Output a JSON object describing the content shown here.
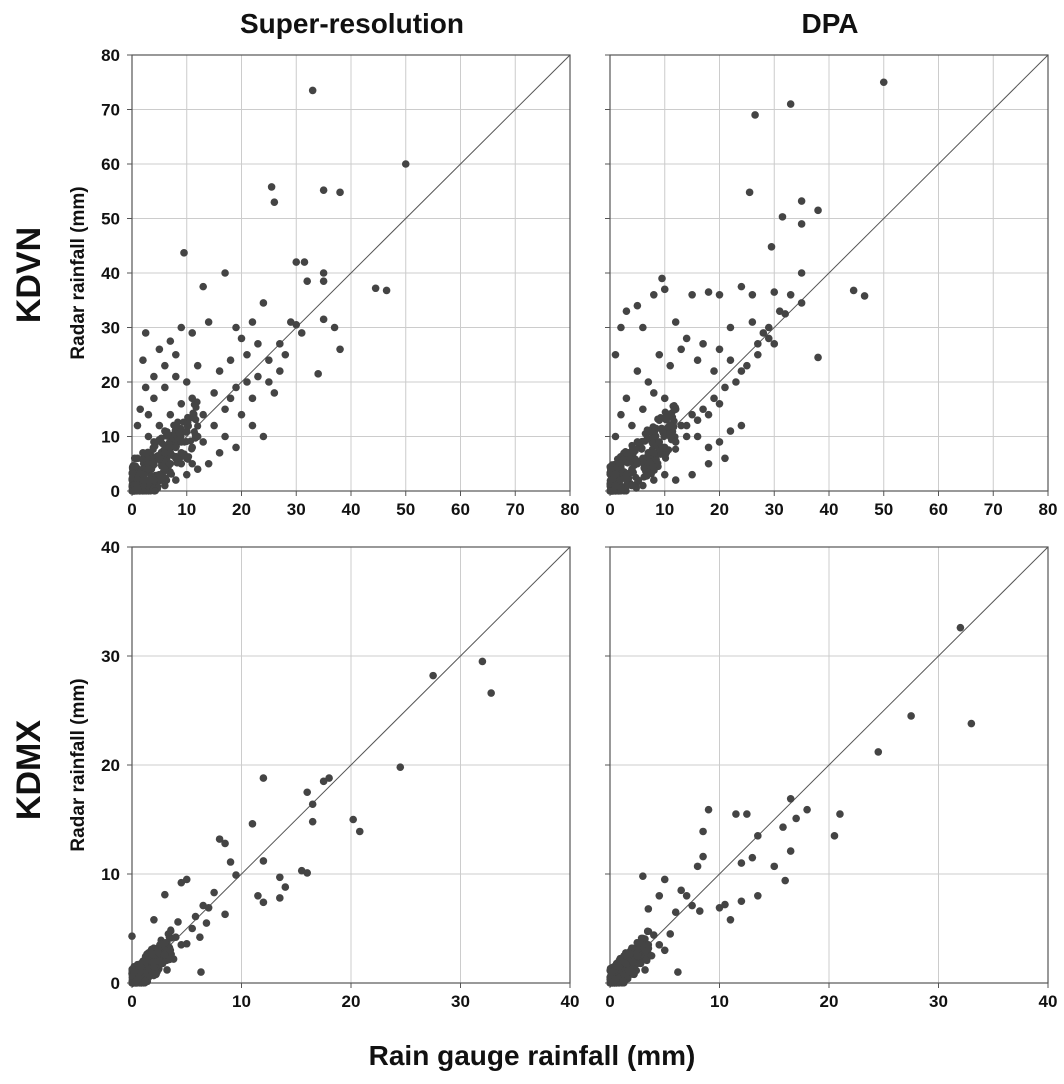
{
  "titles": {
    "columns": [
      "Super-resolution",
      "DPA"
    ],
    "rows": [
      "KDVN",
      "KDMX"
    ],
    "x_axis": "Rain gauge rainfall (mm)",
    "y_axis": "Radar rainfall (mm)"
  },
  "colors": {
    "marker": "#444444",
    "grid": "#cccccc",
    "line": "#555555",
    "axis": "#555555"
  },
  "chart_data": [
    {
      "id": "kdvn-superres",
      "type": "scatter",
      "xlabel": "",
      "ylabel": "Radar rainfall (mm)",
      "xlim": [
        0,
        80
      ],
      "ylim": [
        0,
        80
      ],
      "xticks": [
        0,
        10,
        20,
        30,
        40,
        50,
        60,
        70,
        80
      ],
      "yticks": [
        0,
        10,
        20,
        30,
        40,
        50,
        60,
        70,
        80
      ],
      "grid": true,
      "reference_line": "1:1",
      "points": [
        [
          33,
          73.5
        ],
        [
          50,
          60
        ],
        [
          25.5,
          55.8
        ],
        [
          26,
          53
        ],
        [
          35,
          55.2
        ],
        [
          38,
          54.8
        ],
        [
          9.5,
          43.7
        ],
        [
          30,
          42
        ],
        [
          31.5,
          42
        ],
        [
          35,
          40
        ],
        [
          35,
          38.5
        ],
        [
          32,
          38.5
        ],
        [
          44.5,
          37.2
        ],
        [
          46.5,
          36.8
        ],
        [
          17,
          40
        ],
        [
          13,
          37.5
        ],
        [
          24,
          34.5
        ],
        [
          29,
          31
        ],
        [
          30,
          30.5
        ],
        [
          35,
          31.5
        ],
        [
          37,
          30
        ],
        [
          38,
          26
        ],
        [
          34,
          21.5
        ],
        [
          2,
          24
        ],
        [
          2.5,
          29
        ],
        [
          5,
          26
        ],
        [
          7,
          27.5
        ],
        [
          9,
          30
        ],
        [
          11,
          29
        ],
        [
          14,
          31
        ],
        [
          19,
          30
        ],
        [
          20,
          28
        ],
        [
          22,
          31
        ],
        [
          21,
          25
        ],
        [
          23,
          27
        ],
        [
          18,
          24
        ],
        [
          16,
          22
        ],
        [
          12,
          23
        ],
        [
          10,
          20
        ],
        [
          8,
          21
        ],
        [
          6,
          19
        ],
        [
          4,
          17
        ],
        [
          3,
          14
        ],
        [
          15,
          18
        ],
        [
          18,
          17
        ],
        [
          20,
          14
        ],
        [
          22,
          12
        ],
        [
          24,
          10
        ],
        [
          19,
          8
        ],
        [
          16,
          7
        ],
        [
          14,
          5
        ],
        [
          12,
          4
        ],
        [
          10,
          3
        ],
        [
          8,
          2
        ],
        [
          6,
          1
        ],
        [
          5,
          12
        ],
        [
          7,
          14
        ],
        [
          9,
          16
        ],
        [
          11,
          17
        ],
        [
          13,
          14
        ],
        [
          15,
          12
        ],
        [
          17,
          10
        ],
        [
          13,
          9
        ],
        [
          11,
          8
        ],
        [
          9,
          9
        ],
        [
          7,
          8
        ],
        [
          5,
          6
        ],
        [
          3,
          5
        ],
        [
          2,
          3
        ],
        [
          1,
          2
        ],
        [
          4,
          9
        ],
        [
          6,
          11
        ],
        [
          8,
          12
        ],
        [
          10,
          11
        ],
        [
          12,
          10
        ],
        [
          2,
          7
        ],
        [
          3,
          10
        ],
        [
          1,
          6
        ],
        [
          1,
          12
        ],
        [
          0.5,
          1
        ],
        [
          1,
          1
        ],
        [
          2,
          1
        ],
        [
          3,
          2
        ],
        [
          4,
          2
        ],
        [
          5,
          3
        ],
        [
          6,
          4
        ],
        [
          7,
          5
        ],
        [
          8,
          6
        ],
        [
          9,
          5
        ],
        [
          10,
          6
        ],
        [
          11,
          5
        ],
        [
          26,
          18
        ],
        [
          27,
          22
        ],
        [
          25,
          20
        ],
        [
          28,
          25
        ],
        [
          21,
          20
        ],
        [
          23,
          21
        ],
        [
          25,
          24
        ],
        [
          27,
          27
        ],
        [
          31,
          29
        ],
        [
          19,
          19
        ],
        [
          17,
          15
        ],
        [
          22,
          17
        ],
        [
          0.5,
          6
        ],
        [
          1.5,
          15
        ],
        [
          2.5,
          19
        ],
        [
          4,
          21
        ],
        [
          6,
          23
        ],
        [
          8,
          25
        ],
        [
          3,
          4
        ],
        [
          4,
          5
        ],
        [
          2,
          2
        ],
        [
          1,
          0.5
        ],
        [
          6,
          7
        ],
        [
          7,
          7
        ],
        [
          8,
          8
        ],
        [
          9,
          7
        ]
      ]
    },
    {
      "id": "kdvn-dpa",
      "type": "scatter",
      "xlabel": "",
      "ylabel": "",
      "xlim": [
        0,
        80
      ],
      "ylim": [
        0,
        80
      ],
      "xticks": [
        0,
        10,
        20,
        30,
        40,
        50,
        60,
        70,
        80
      ],
      "yticks": [
        0,
        10,
        20,
        30,
        40,
        50,
        60,
        70,
        80
      ],
      "grid": true,
      "reference_line": "1:1",
      "points": [
        [
          50,
          75
        ],
        [
          33,
          71
        ],
        [
          26.5,
          69
        ],
        [
          25.5,
          54.8
        ],
        [
          35,
          53.2
        ],
        [
          38,
          51.5
        ],
        [
          31.5,
          50.3
        ],
        [
          35,
          49
        ],
        [
          29.5,
          44.8
        ],
        [
          35,
          40
        ],
        [
          9.5,
          39
        ],
        [
          44.5,
          36.8
        ],
        [
          46.5,
          35.8
        ],
        [
          30,
          36.5
        ],
        [
          33,
          36
        ],
        [
          32,
          32.5
        ],
        [
          35,
          34.5
        ],
        [
          38,
          24.5
        ],
        [
          29,
          28
        ],
        [
          27,
          27
        ],
        [
          26,
          36
        ],
        [
          24,
          37.5
        ],
        [
          20,
          36
        ],
        [
          18,
          36.5
        ],
        [
          15,
          36
        ],
        [
          10,
          37
        ],
        [
          8,
          36
        ],
        [
          5,
          34
        ],
        [
          3,
          33
        ],
        [
          1,
          25
        ],
        [
          2,
          30
        ],
        [
          6,
          30
        ],
        [
          12,
          31
        ],
        [
          14,
          28
        ],
        [
          17,
          27
        ],
        [
          20,
          26
        ],
        [
          22,
          24
        ],
        [
          24,
          22
        ],
        [
          19,
          22
        ],
        [
          16,
          24
        ],
        [
          13,
          26
        ],
        [
          11,
          23
        ],
        [
          9,
          25
        ],
        [
          7,
          20
        ],
        [
          5,
          22
        ],
        [
          3,
          17
        ],
        [
          2,
          14
        ],
        [
          1,
          10
        ],
        [
          4,
          12
        ],
        [
          6,
          15
        ],
        [
          8,
          18
        ],
        [
          10,
          17
        ],
        [
          12,
          15
        ],
        [
          14,
          12
        ],
        [
          16,
          10
        ],
        [
          18,
          8
        ],
        [
          20,
          9
        ],
        [
          22,
          11
        ],
        [
          24,
          12
        ],
        [
          21,
          6
        ],
        [
          18,
          5
        ],
        [
          15,
          3
        ],
        [
          12,
          2
        ],
        [
          10,
          3
        ],
        [
          8,
          2
        ],
        [
          6,
          1
        ],
        [
          4,
          1
        ],
        [
          2,
          0.5
        ],
        [
          1,
          1
        ],
        [
          3,
          3
        ],
        [
          5,
          5
        ],
        [
          7,
          7
        ],
        [
          9,
          9
        ],
        [
          11,
          10
        ],
        [
          13,
          12
        ],
        [
          15,
          14
        ],
        [
          17,
          15
        ],
        [
          19,
          17
        ],
        [
          21,
          19
        ],
        [
          23,
          20
        ],
        [
          25,
          23
        ],
        [
          27,
          25
        ],
        [
          29,
          30
        ],
        [
          31,
          33
        ],
        [
          26,
          31
        ],
        [
          28,
          29
        ],
        [
          30,
          27
        ],
        [
          22,
          30
        ],
        [
          11,
          12
        ],
        [
          9,
          13
        ],
        [
          7,
          11
        ],
        [
          5,
          9
        ],
        [
          3,
          7
        ],
        [
          2,
          5
        ],
        [
          1,
          3
        ],
        [
          4,
          4
        ],
        [
          6,
          6
        ],
        [
          8,
          7
        ],
        [
          10,
          8
        ],
        [
          12,
          9
        ],
        [
          14,
          10
        ],
        [
          16,
          13
        ],
        [
          18,
          14
        ],
        [
          20,
          16
        ]
      ]
    },
    {
      "id": "kdmx-superres",
      "type": "scatter",
      "xlabel": "",
      "ylabel": "Radar rainfall (mm)",
      "xlim": [
        0,
        40
      ],
      "ylim": [
        0,
        40
      ],
      "xticks": [
        0,
        10,
        20,
        30,
        40
      ],
      "yticks": [
        0,
        10,
        20,
        30,
        40
      ],
      "grid": true,
      "reference_line": "1:1",
      "points": [
        [
          32,
          29.5
        ],
        [
          27.5,
          28.2
        ],
        [
          32.8,
          26.6
        ],
        [
          24.5,
          19.8
        ],
        [
          18,
          18.8
        ],
        [
          17.5,
          18.5
        ],
        [
          12,
          18.8
        ],
        [
          16,
          17.5
        ],
        [
          16.5,
          16.4
        ],
        [
          20.2,
          15
        ],
        [
          20.8,
          13.9
        ],
        [
          11,
          14.6
        ],
        [
          16.5,
          14.8
        ],
        [
          12,
          11.2
        ],
        [
          15.5,
          10.3
        ],
        [
          16,
          10.1
        ],
        [
          13.5,
          9.7
        ],
        [
          14,
          8.8
        ],
        [
          11.5,
          8
        ],
        [
          12,
          7.4
        ],
        [
          13.5,
          7.8
        ],
        [
          8,
          13.2
        ],
        [
          8.5,
          12.8
        ],
        [
          9,
          11.1
        ],
        [
          9.5,
          9.9
        ],
        [
          7.5,
          8.3
        ],
        [
          8.5,
          6.3
        ],
        [
          6.5,
          7.1
        ],
        [
          5,
          9.5
        ],
        [
          4.5,
          9.2
        ],
        [
          3,
          8.1
        ],
        [
          5.5,
          5
        ],
        [
          6.2,
          4.2
        ],
        [
          6.3,
          1
        ],
        [
          5,
          3.6
        ],
        [
          4,
          4.2
        ],
        [
          3,
          2.6
        ],
        [
          2,
          5.8
        ],
        [
          0,
          4.3
        ],
        [
          1,
          2
        ],
        [
          2,
          1.5
        ],
        [
          1.5,
          0.5
        ],
        [
          0.5,
          0.3
        ],
        [
          2.5,
          2
        ],
        [
          3.5,
          3
        ],
        [
          4.5,
          3.5
        ],
        [
          0.2,
          1
        ],
        [
          0.8,
          1.5
        ],
        [
          1.2,
          0.2
        ],
        [
          2.2,
          0.8
        ],
        [
          3.2,
          1.2
        ],
        [
          0.3,
          0.1
        ],
        [
          1.8,
          2.7
        ],
        [
          2.8,
          1.8
        ],
        [
          3.8,
          2.2
        ],
        [
          4.2,
          5.6
        ],
        [
          5.8,
          6.1
        ],
        [
          7,
          6.9
        ],
        [
          6.8,
          5.5
        ]
      ]
    },
    {
      "id": "kdmx-dpa",
      "type": "scatter",
      "xlabel": "",
      "ylabel": "",
      "xlim": [
        0,
        40
      ],
      "ylim": [
        0,
        40
      ],
      "xticks": [
        0,
        10,
        20,
        30,
        40
      ],
      "yticks": [
        0,
        10,
        20,
        30,
        40
      ],
      "grid": true,
      "reference_line": "1:1",
      "points": [
        [
          32,
          32.6
        ],
        [
          27.5,
          24.5
        ],
        [
          33,
          23.8
        ],
        [
          24.5,
          21.2
        ],
        [
          21,
          15.5
        ],
        [
          20.5,
          13.5
        ],
        [
          16.5,
          16.9
        ],
        [
          18,
          15.9
        ],
        [
          17,
          15.1
        ],
        [
          15.8,
          14.3
        ],
        [
          16.5,
          12.1
        ],
        [
          16,
          9.4
        ],
        [
          15,
          10.7
        ],
        [
          13.5,
          13.5
        ],
        [
          12.5,
          15.5
        ],
        [
          11.5,
          15.5
        ],
        [
          12,
          11
        ],
        [
          13,
          11.5
        ],
        [
          13.5,
          8
        ],
        [
          12,
          7.5
        ],
        [
          11,
          5.8
        ],
        [
          10.5,
          7.2
        ],
        [
          9,
          15.9
        ],
        [
          8.5,
          13.9
        ],
        [
          8.5,
          11.6
        ],
        [
          8,
          10.7
        ],
        [
          7,
          8
        ],
        [
          6.5,
          8.5
        ],
        [
          6,
          6.5
        ],
        [
          5,
          9.5
        ],
        [
          4.5,
          8
        ],
        [
          3,
          9.8
        ],
        [
          3.5,
          6.8
        ],
        [
          4,
          4.4
        ],
        [
          5.5,
          4.5
        ],
        [
          6.2,
          1
        ],
        [
          5,
          3
        ],
        [
          2,
          3.2
        ],
        [
          1,
          2
        ],
        [
          2,
          1
        ],
        [
          1.5,
          0.5
        ],
        [
          0.5,
          0.3
        ],
        [
          2.5,
          2.5
        ],
        [
          3.5,
          3.5
        ],
        [
          4.5,
          3.5
        ],
        [
          0.2,
          1
        ],
        [
          0.8,
          1.5
        ],
        [
          1.2,
          0.2
        ],
        [
          2.2,
          0.8
        ],
        [
          3.2,
          1.2
        ],
        [
          0.3,
          0.1
        ],
        [
          1.8,
          2.7
        ],
        [
          2.8,
          1.8
        ],
        [
          3.8,
          2.5
        ],
        [
          7.5,
          7.1
        ],
        [
          8.2,
          6.6
        ],
        [
          10,
          6.9
        ]
      ]
    }
  ]
}
